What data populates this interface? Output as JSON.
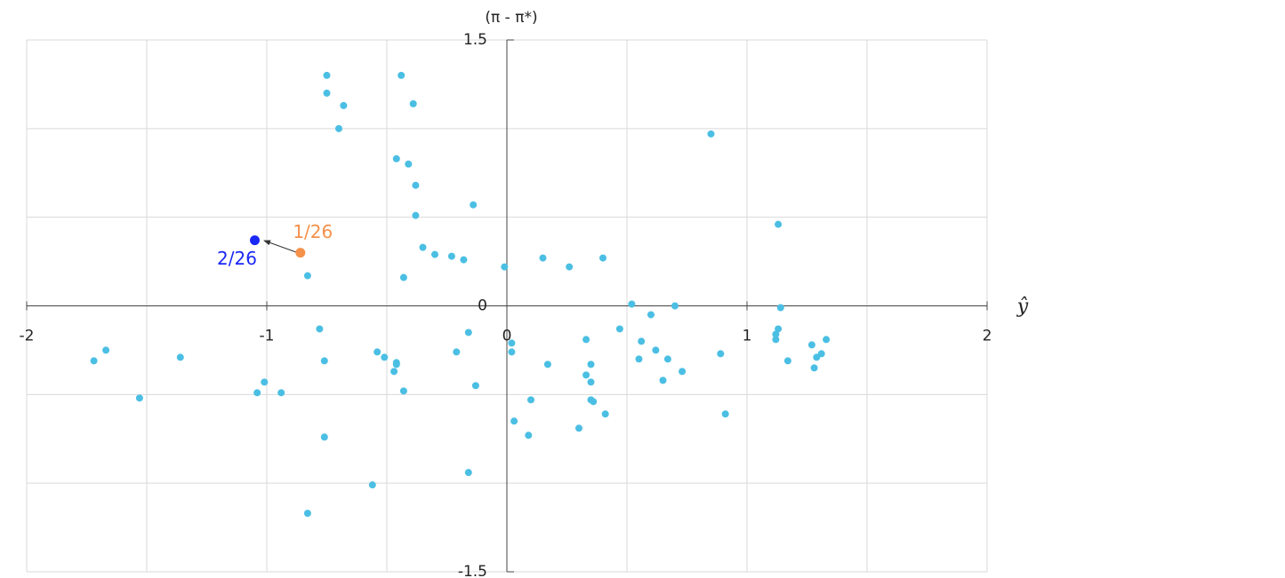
{
  "chart_data": {
    "type": "scatter",
    "x_label": "ŷ",
    "y_label": "(π - π*)",
    "xlim": [
      -2,
      2
    ],
    "ylim": [
      -1.5,
      1.5
    ],
    "xticks": [
      -2,
      -1,
      0,
      1,
      2
    ],
    "yticks": [
      1.5,
      0,
      -1.5
    ],
    "xgrid": [
      -2,
      -1.5,
      -1,
      -0.5,
      0,
      0.5,
      1,
      1.5,
      2
    ],
    "ygrid": [
      -1.5,
      -1,
      -0.5,
      0,
      0.5,
      1,
      1.5
    ],
    "grid": true,
    "series": [
      {
        "name": null,
        "color": "#4bbfe3",
        "x": [
          -0.75,
          -0.44,
          -0.75,
          -0.68,
          -0.39,
          -0.7,
          0.85,
          -0.46,
          -0.41,
          -0.38,
          -0.14,
          -0.38,
          1.13,
          -0.35,
          -0.3,
          -0.23,
          -0.18,
          0.15,
          0.4,
          0.26,
          -0.01,
          -0.83,
          -0.43,
          0.52,
          0.7,
          1.14,
          0.6,
          -0.78,
          -0.16,
          0.47,
          1.13,
          1.12,
          1.12,
          1.33,
          0.02,
          0.33,
          0.56,
          1.27,
          -1.67,
          0.02,
          -0.54,
          0.62,
          0.89,
          1.31,
          -0.21,
          -1.36,
          -0.51,
          0.55,
          0.67,
          1.29,
          -1.72,
          -0.76,
          -0.46,
          -0.46,
          0.17,
          0.35,
          1.17,
          -0.47,
          0.73,
          1.28,
          0.33,
          0.35,
          -1.01,
          0.65,
          -0.13,
          -1.04,
          -0.43,
          -0.94,
          -1.53,
          0.1,
          0.35,
          0.36,
          0.41,
          0.91,
          0.03,
          0.3,
          0.09,
          -0.76,
          -0.16,
          -0.56,
          -0.83
        ],
        "y": [
          1.3,
          1.3,
          1.2,
          1.13,
          1.14,
          1.0,
          0.97,
          0.83,
          0.8,
          0.68,
          0.57,
          0.51,
          0.46,
          0.33,
          0.29,
          0.28,
          0.26,
          0.27,
          0.27,
          0.22,
          0.22,
          0.17,
          0.16,
          0.01,
          0.0,
          -0.01,
          -0.05,
          -0.13,
          -0.15,
          -0.13,
          -0.13,
          -0.16,
          -0.19,
          -0.19,
          -0.21,
          -0.19,
          -0.2,
          -0.22,
          -0.25,
          -0.26,
          -0.26,
          -0.25,
          -0.27,
          -0.27,
          -0.26,
          -0.29,
          -0.29,
          -0.3,
          -0.3,
          -0.29,
          -0.31,
          -0.31,
          -0.32,
          -0.33,
          -0.33,
          -0.33,
          -0.31,
          -0.37,
          -0.37,
          -0.35,
          -0.39,
          -0.43,
          -0.43,
          -0.42,
          -0.45,
          -0.49,
          -0.48,
          -0.49,
          -0.52,
          -0.53,
          -0.53,
          -0.54,
          -0.61,
          -0.61,
          -0.65,
          -0.69,
          -0.73,
          -0.74,
          -0.94,
          -1.01,
          -1.17
        ]
      },
      {
        "name": "1/26",
        "color": "#f4914a",
        "x": [
          -0.86
        ],
        "y": [
          0.3
        ]
      },
      {
        "name": "2/26",
        "color": "#1a28f5",
        "x": [
          -1.05
        ],
        "y": [
          0.37
        ]
      }
    ]
  }
}
